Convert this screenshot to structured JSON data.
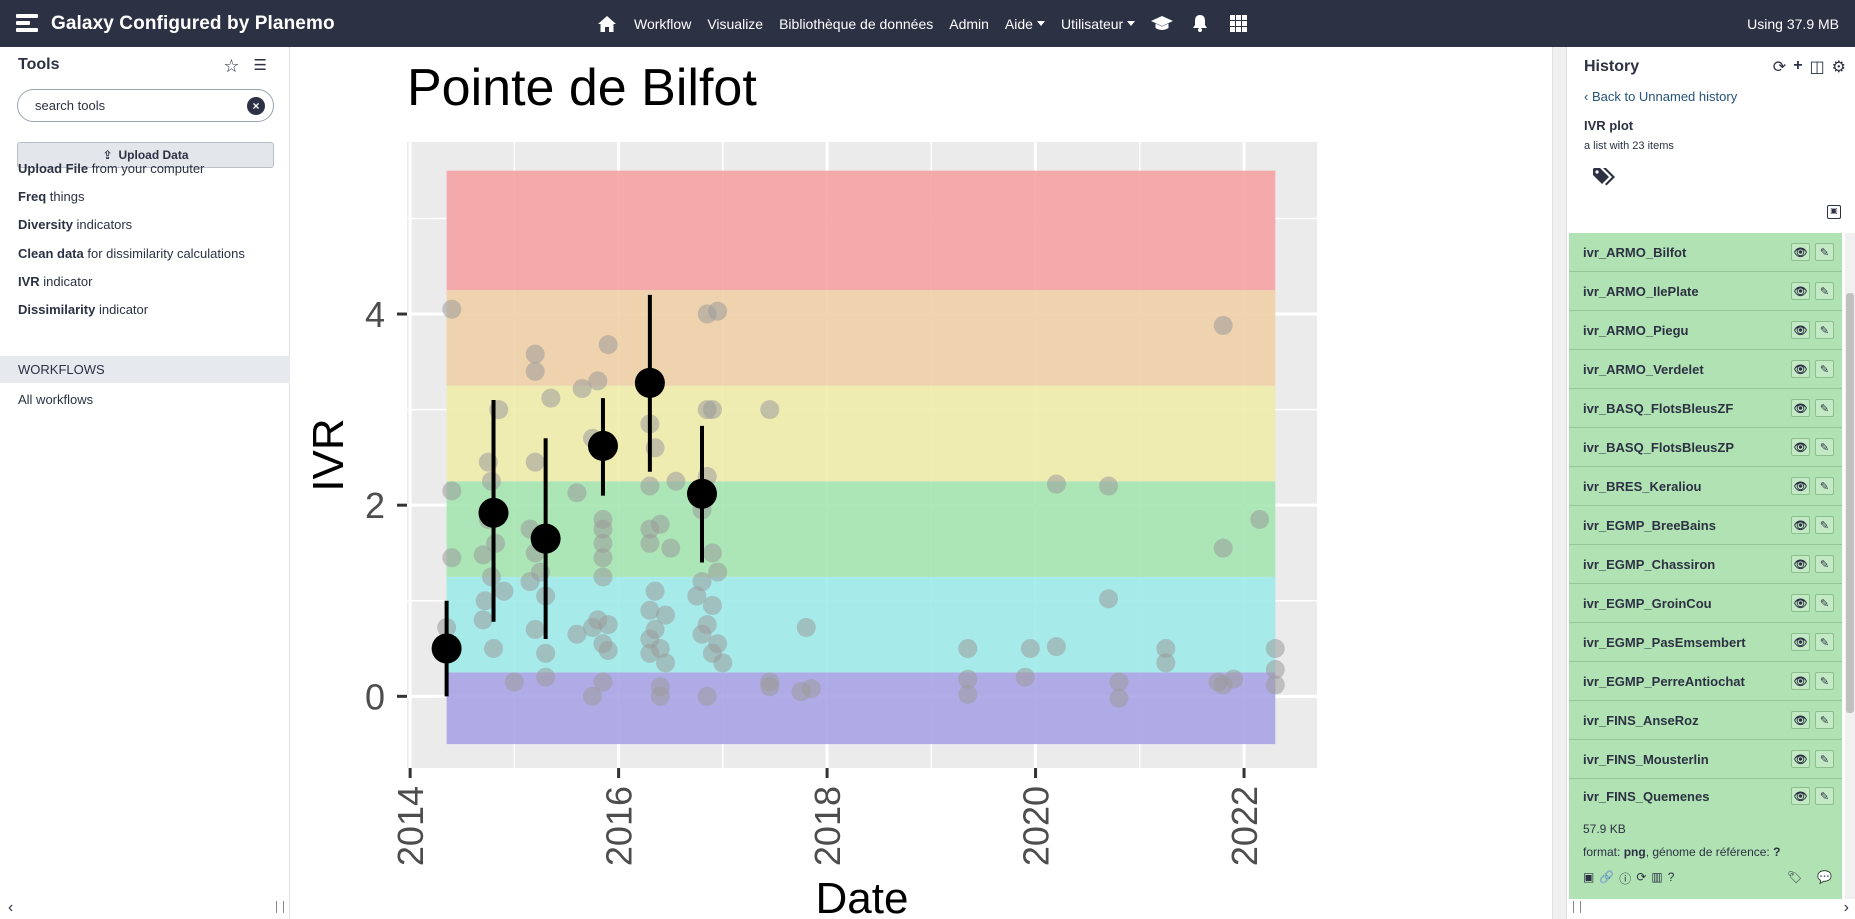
{
  "masthead": {
    "title": "Galaxy Configured by Planemo",
    "nav": [
      "Workflow",
      "Visualize",
      "Bibliothèque de données",
      "Admin",
      "Aide",
      "Utilisateur"
    ],
    "quota": "Using 37.9 MB"
  },
  "tools": {
    "header": "Tools",
    "search_placeholder": "search tools",
    "upload_label": "Upload Data",
    "items": [
      {
        "name": "Upload File",
        "desc": "from your computer"
      },
      {
        "name": "Freq",
        "desc": "things"
      },
      {
        "name": "Diversity",
        "desc": "indicators"
      },
      {
        "name": "Clean data",
        "desc": "for dissimilarity calculations"
      },
      {
        "name": "IVR",
        "desc": "indicator"
      },
      {
        "name": "Dissimilarity",
        "desc": "indicator"
      }
    ],
    "workflows_label": "WORKFLOWS",
    "all_workflows": "All workflows"
  },
  "history": {
    "title": "History",
    "back_link": "Back to Unnamed history",
    "collection_title": "IVR plot",
    "collection_sub": "a list with 23 items",
    "datasets": [
      "ivr_ARMO_Bilfot",
      "ivr_ARMO_IlePlate",
      "ivr_ARMO_Piegu",
      "ivr_ARMO_Verdelet",
      "ivr_BASQ_FlotsBleusZF",
      "ivr_BASQ_FlotsBleusZP",
      "ivr_BRES_Keraliou",
      "ivr_EGMP_BreeBains",
      "ivr_EGMP_Chassiron",
      "ivr_EGMP_GroinCou",
      "ivr_EGMP_PasEmsembert",
      "ivr_EGMP_PerreAntiochat",
      "ivr_FINS_AnseRoz",
      "ivr_FINS_Mousterlin"
    ],
    "expanded": {
      "name": "ivr_FINS_Quemenes",
      "size": "57.9 KB",
      "format_label": "format:",
      "format_value": "png",
      "genome_label": ", génome de référence:",
      "genome_value": "?"
    }
  },
  "chart_data": {
    "type": "scatter",
    "title": "Pointe de Bilfot",
    "xlabel": "Date",
    "ylabel": "IVR",
    "xlim": [
      2013.97,
      2022.7
    ],
    "ylim": [
      -0.75,
      5.8
    ],
    "x_ticks": [
      "2014",
      "2016",
      "2018",
      "2020",
      "2022"
    ],
    "y_ticks": [
      "0",
      "2",
      "4"
    ],
    "bands": [
      {
        "from": -0.5,
        "to": 0.25,
        "color": "#a9a4e6"
      },
      {
        "from": 0.25,
        "to": 1.25,
        "color": "#9eeaea"
      },
      {
        "from": 1.25,
        "to": 2.25,
        "color": "#a5e6b0"
      },
      {
        "from": 2.25,
        "to": 3.25,
        "color": "#efecab"
      },
      {
        "from": 3.25,
        "to": 4.25,
        "color": "#efd0a7"
      },
      {
        "from": 4.25,
        "to": 5.5,
        "color": "#f5a2a4"
      }
    ],
    "band_x_range": [
      2014.35,
      2022.3
    ],
    "points": [
      [
        2014.4,
        4.05
      ],
      [
        2014.4,
        2.15
      ],
      [
        2014.4,
        1.45
      ],
      [
        2014.35,
        0.72
      ],
      [
        2014.75,
        2.45
      ],
      [
        2014.78,
        2.25
      ],
      [
        2014.85,
        3.0
      ],
      [
        2014.75,
        1.85
      ],
      [
        2014.7,
        1.48
      ],
      [
        2014.82,
        1.6
      ],
      [
        2014.72,
        1.0
      ],
      [
        2014.7,
        0.8
      ],
      [
        2014.8,
        0.5
      ],
      [
        2014.9,
        1.1
      ],
      [
        2014.78,
        1.25
      ],
      [
        2015.2,
        3.58
      ],
      [
        2015.2,
        3.4
      ],
      [
        2015.2,
        2.45
      ],
      [
        2015.35,
        3.12
      ],
      [
        2015.15,
        1.75
      ],
      [
        2015.2,
        1.5
      ],
      [
        2015.25,
        1.3
      ],
      [
        2015.3,
        1.05
      ],
      [
        2015.2,
        0.7
      ],
      [
        2015.3,
        0.45
      ],
      [
        2015.3,
        0.2
      ],
      [
        2015.0,
        0.15
      ],
      [
        2015.15,
        1.2
      ],
      [
        2015.65,
        3.22
      ],
      [
        2015.8,
        3.3
      ],
      [
        2015.9,
        3.68
      ],
      [
        2015.75,
        2.7
      ],
      [
        2015.6,
        2.13
      ],
      [
        2015.85,
        1.85
      ],
      [
        2015.85,
        1.75
      ],
      [
        2015.85,
        1.6
      ],
      [
        2015.85,
        1.45
      ],
      [
        2015.85,
        1.25
      ],
      [
        2015.8,
        0.8
      ],
      [
        2015.9,
        0.75
      ],
      [
        2015.75,
        0.72
      ],
      [
        2015.6,
        0.65
      ],
      [
        2015.85,
        0.55
      ],
      [
        2015.9,
        0.48
      ],
      [
        2015.85,
        0.15
      ],
      [
        2015.75,
        0.0
      ],
      [
        2016.35,
        2.6
      ],
      [
        2016.3,
        2.85
      ],
      [
        2016.3,
        2.2
      ],
      [
        2016.55,
        2.25
      ],
      [
        2016.3,
        1.75
      ],
      [
        2016.4,
        1.8
      ],
      [
        2016.3,
        1.6
      ],
      [
        2016.5,
        1.55
      ],
      [
        2016.35,
        1.1
      ],
      [
        2016.3,
        0.9
      ],
      [
        2016.45,
        0.85
      ],
      [
        2016.35,
        0.7
      ],
      [
        2016.3,
        0.6
      ],
      [
        2016.4,
        0.5
      ],
      [
        2016.3,
        0.45
      ],
      [
        2016.45,
        0.35
      ],
      [
        2016.4,
        0.1
      ],
      [
        2016.4,
        0.0
      ],
      [
        2016.85,
        4.0
      ],
      [
        2016.95,
        4.03
      ],
      [
        2016.9,
        3.0
      ],
      [
        2016.85,
        3.0
      ],
      [
        2016.85,
        2.3
      ],
      [
        2016.8,
        1.95
      ],
      [
        2016.9,
        1.5
      ],
      [
        2016.95,
        1.3
      ],
      [
        2016.8,
        1.2
      ],
      [
        2016.75,
        1.05
      ],
      [
        2016.9,
        0.95
      ],
      [
        2016.85,
        0.75
      ],
      [
        2016.8,
        0.65
      ],
      [
        2016.95,
        0.55
      ],
      [
        2016.9,
        0.45
      ],
      [
        2017.0,
        0.35
      ],
      [
        2016.85,
        0.0
      ],
      [
        2017.45,
        3.0
      ],
      [
        2017.45,
        0.15
      ],
      [
        2017.45,
        0.1
      ],
      [
        2017.8,
        0.72
      ],
      [
        2017.75,
        0.05
      ],
      [
        2017.85,
        0.08
      ],
      [
        2019.35,
        0.5
      ],
      [
        2019.35,
        0.18
      ],
      [
        2019.35,
        0.02
      ],
      [
        2019.9,
        0.2
      ],
      [
        2019.95,
        0.5
      ],
      [
        2020.2,
        0.52
      ],
      [
        2020.2,
        2.22
      ],
      [
        2020.7,
        2.2
      ],
      [
        2020.7,
        1.02
      ],
      [
        2020.8,
        0.15
      ],
      [
        2020.8,
        -0.02
      ],
      [
        2021.25,
        0.5
      ],
      [
        2021.25,
        0.35
      ],
      [
        2021.8,
        3.88
      ],
      [
        2021.8,
        1.55
      ],
      [
        2021.75,
        0.15
      ],
      [
        2021.8,
        0.12
      ],
      [
        2021.9,
        0.18
      ],
      [
        2022.15,
        1.85
      ],
      [
        2022.3,
        0.5
      ],
      [
        2022.3,
        0.28
      ],
      [
        2022.3,
        0.12
      ]
    ],
    "means": [
      {
        "x": 2014.35,
        "y": 0.5,
        "lo": 0.0,
        "hi": 1.0
      },
      {
        "x": 2014.8,
        "y": 1.92,
        "lo": 0.78,
        "hi": 3.1
      },
      {
        "x": 2015.3,
        "y": 1.65,
        "lo": 0.6,
        "hi": 2.7
      },
      {
        "x": 2015.85,
        "y": 2.62,
        "lo": 2.1,
        "hi": 3.12
      },
      {
        "x": 2016.3,
        "y": 3.28,
        "lo": 2.35,
        "hi": 4.2
      },
      {
        "x": 2016.8,
        "y": 2.12,
        "lo": 1.4,
        "hi": 2.83
      }
    ]
  }
}
